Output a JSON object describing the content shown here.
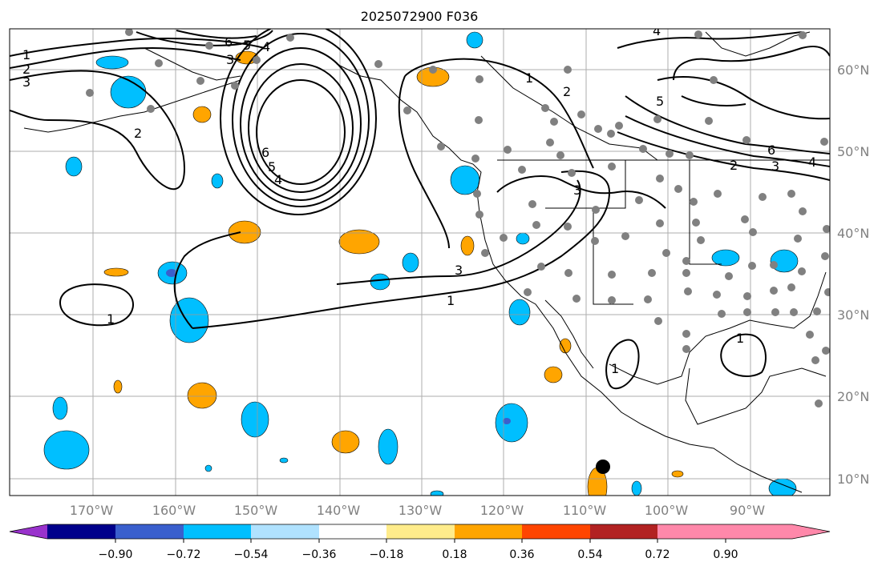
{
  "title": "2025072900 F036",
  "map": {
    "longitude_ticks": [
      "170°W",
      "160°W",
      "150°W",
      "140°W",
      "130°W",
      "120°W",
      "110°W",
      "100°W",
      "90°W"
    ],
    "latitude_ticks": [
      "60°N",
      "50°N",
      "40°N",
      "30°N",
      "20°N",
      "10°N"
    ],
    "contour_labels": [
      "1",
      "2",
      "3",
      "4",
      "5",
      "6"
    ],
    "station_marker_color": "#808080",
    "contour_color": "#000000"
  },
  "colorbar": {
    "tick_labels": [
      "−0.90",
      "−0.72",
      "−0.54",
      "−0.36",
      "−0.18",
      "0.18",
      "0.36",
      "0.54",
      "0.72",
      "0.90"
    ],
    "colors": [
      "#9932cc",
      "#00008b",
      "#3a5fcd",
      "#00bfff",
      "#b0e2ff",
      "#ffffff",
      "#ffec8b",
      "#ffa500",
      "#ff4500",
      "#b22222",
      "#ff88aa"
    ]
  }
}
